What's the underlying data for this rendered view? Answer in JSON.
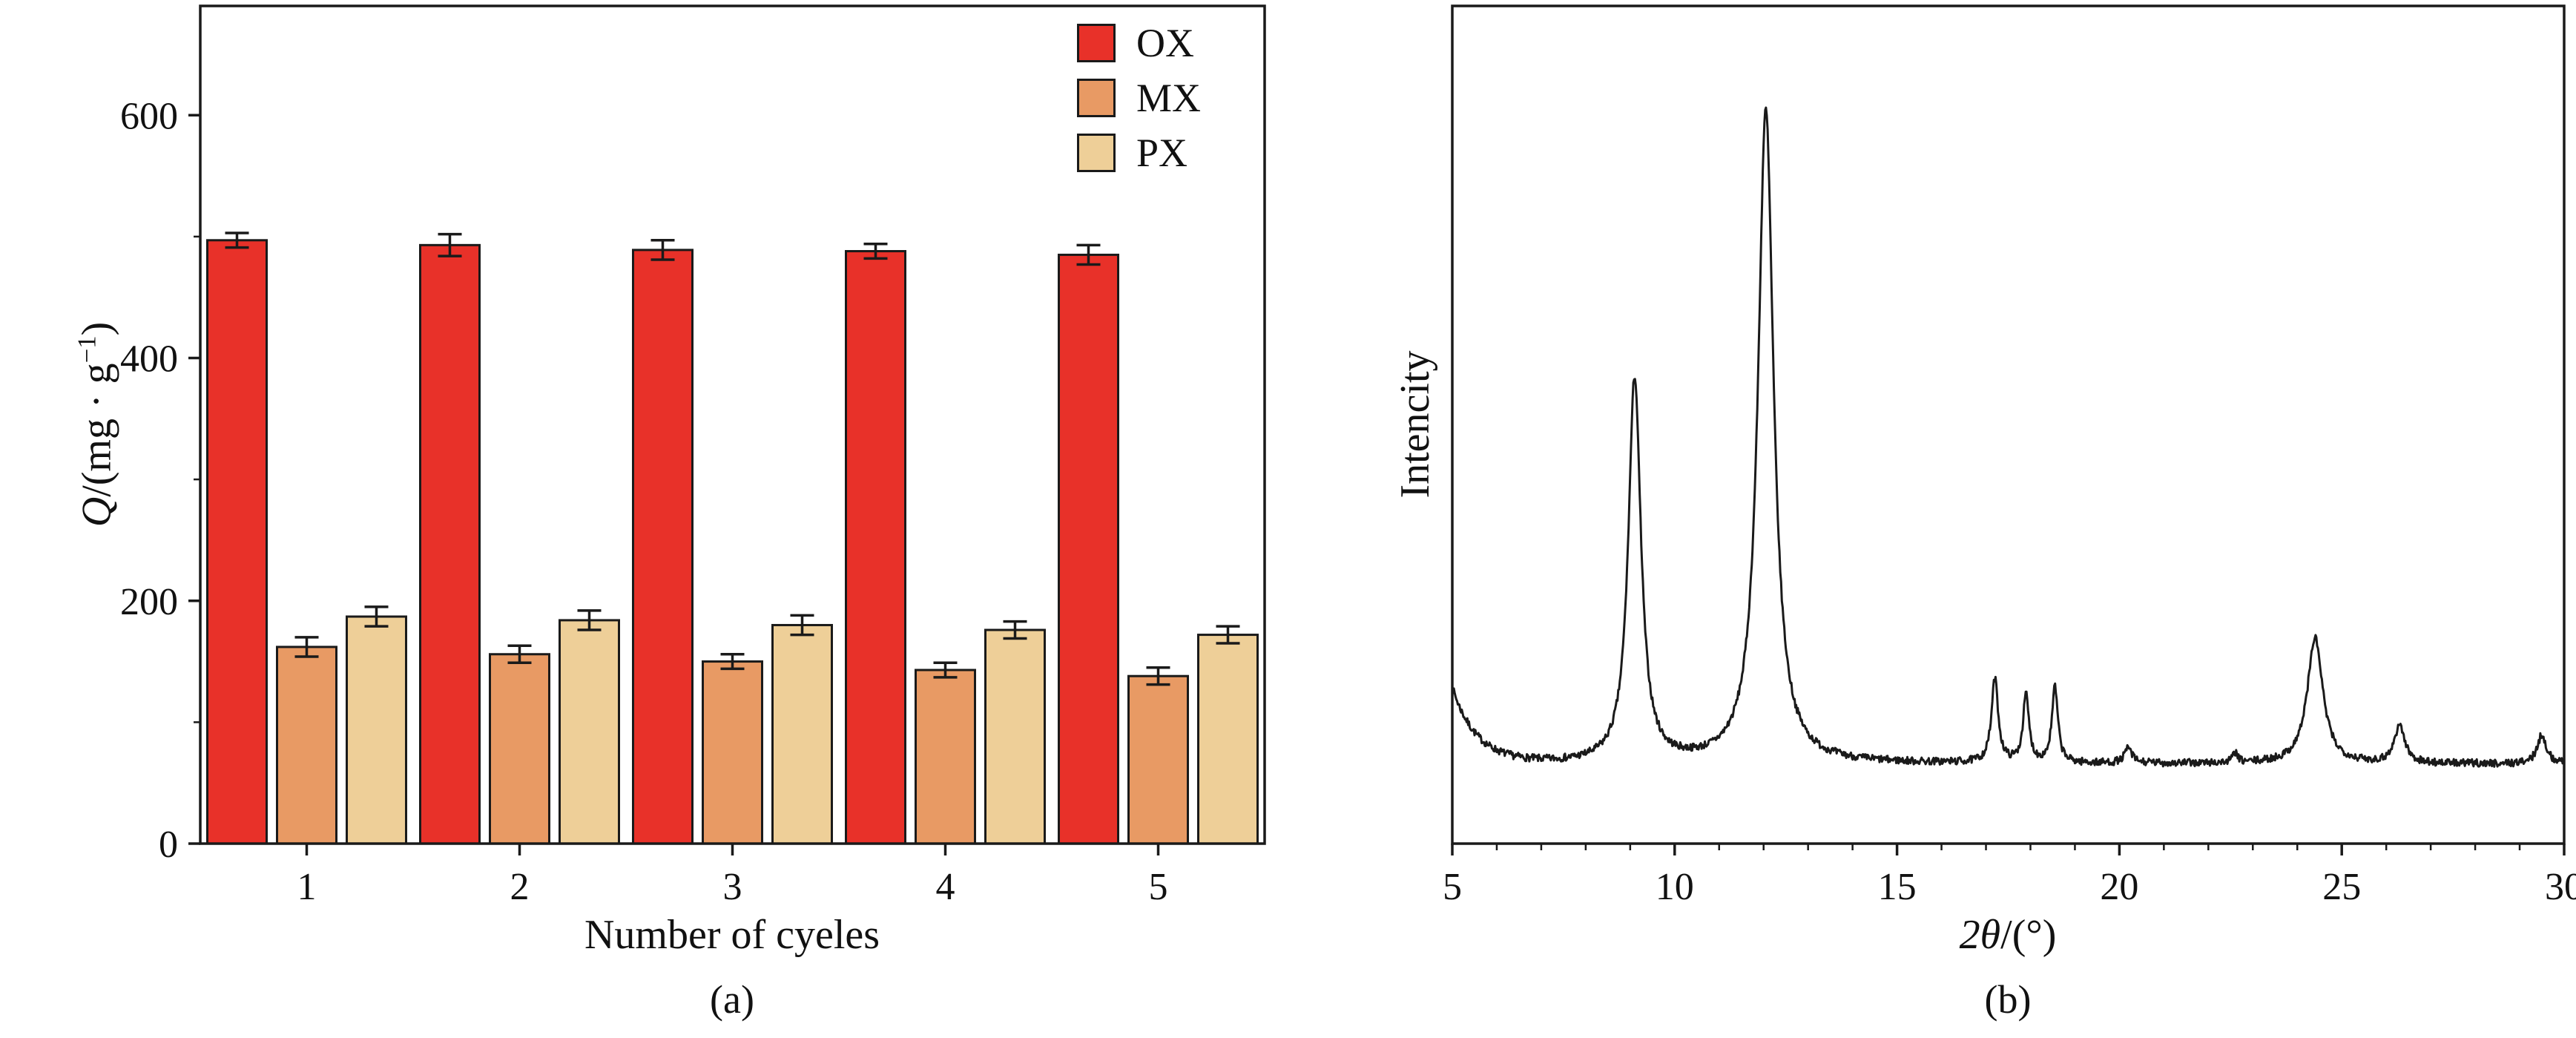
{
  "chart_data": [
    {
      "type": "bar",
      "panel": "a",
      "title": "",
      "xlabel": "Number of cyeles",
      "ylabel": "Q/(mg·g−1)",
      "categories": [
        "1",
        "2",
        "3",
        "4",
        "5"
      ],
      "series": [
        {
          "name": "OX",
          "color": "#e83129",
          "values": [
            497,
            493,
            489,
            488,
            485
          ],
          "errors": [
            6,
            9,
            8,
            6,
            8
          ]
        },
        {
          "name": "MX",
          "color": "#e89a64",
          "values": [
            162,
            156,
            150,
            143,
            138
          ],
          "errors": [
            8,
            7,
            6,
            6,
            7
          ]
        },
        {
          "name": "PX",
          "color": "#eecf98",
          "values": [
            187,
            184,
            180,
            176,
            172
          ],
          "errors": [
            8,
            8,
            8,
            7,
            7
          ]
        }
      ],
      "ylim": [
        0,
        690
      ],
      "yticks": [
        0,
        200,
        400,
        600
      ],
      "yminor": [
        100,
        300,
        500
      ],
      "legend_position": "top-right",
      "frame": true,
      "grid": false,
      "bar_edge_color": "#1a1a1a"
    },
    {
      "type": "line",
      "panel": "b",
      "title": "",
      "xlabel": "2θ/(°)",
      "ylabel": "Intencity",
      "xlim": [
        5,
        30
      ],
      "xticks": [
        5,
        10,
        15,
        20,
        25,
        30
      ],
      "xminor_step": 1,
      "frame": true,
      "grid": false,
      "line_color": "#1a1a1a",
      "baseline": 0.095,
      "noise": 0.0045,
      "edge_decay": {
        "amplitude": 0.09,
        "rate": 0.55
      },
      "peaks": [
        {
          "center": 9.1,
          "height": 0.46,
          "width": 0.17
        },
        {
          "center": 12.05,
          "height": 0.78,
          "width": 0.21
        },
        {
          "center": 17.2,
          "height": 0.1,
          "width": 0.09
        },
        {
          "center": 17.9,
          "height": 0.08,
          "width": 0.08
        },
        {
          "center": 18.55,
          "height": 0.09,
          "width": 0.08
        },
        {
          "center": 20.2,
          "height": 0.018,
          "width": 0.1
        },
        {
          "center": 22.6,
          "height": 0.012,
          "width": 0.06
        },
        {
          "center": 24.4,
          "height": 0.15,
          "width": 0.21
        },
        {
          "center": 26.3,
          "height": 0.045,
          "width": 0.14
        },
        {
          "center": 29.5,
          "height": 0.035,
          "width": 0.12
        }
      ]
    }
  ],
  "labels": {
    "ylabel_a": {
      "italic": "Q",
      "mid": "/(mg · g",
      "sup": "−1",
      "end": ")"
    },
    "xlabel_a": "Number of cyeles",
    "caption_a": "(a)",
    "ylabel_b": "Intencity",
    "xlabel_b": {
      "italic": "2θ",
      "end": "/(°)"
    },
    "caption_b": "(b)"
  }
}
